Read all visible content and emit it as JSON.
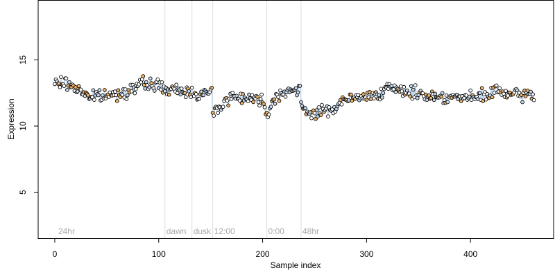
{
  "chart_data": {
    "type": "scatter",
    "xlabel": "Sample index",
    "ylabel": "Expression",
    "xlim": [
      -16,
      480
    ],
    "ylim": [
      1.5,
      19.5
    ],
    "x_ticks": [
      0,
      100,
      200,
      300,
      400
    ],
    "y_ticks": [
      5,
      10,
      15
    ],
    "grid": false,
    "phase_markers": [
      {
        "label": "24hr",
        "x": 2
      },
      {
        "label": "dawn",
        "x": 106
      },
      {
        "label": "dusk",
        "x": 132
      },
      {
        "label": "12:00",
        "x": 152
      },
      {
        "label": "0:00",
        "x": 204
      },
      {
        "label": "48hr",
        "x": 237
      }
    ],
    "series": [
      {
        "marker": "open-circle",
        "point_colors": {
          "light-blue": "#c3d9ef",
          "orange": "#f0b468",
          "white": "#ffffff"
        },
        "anchors": [
          {
            "x": 0,
            "y": 13.2
          },
          {
            "x": 8,
            "y": 13.3
          },
          {
            "x": 20,
            "y": 12.9
          },
          {
            "x": 35,
            "y": 12.2
          },
          {
            "x": 50,
            "y": 12.3
          },
          {
            "x": 60,
            "y": 12.4
          },
          {
            "x": 70,
            "y": 12.7
          },
          {
            "x": 85,
            "y": 13.2
          },
          {
            "x": 100,
            "y": 13.1
          },
          {
            "x": 110,
            "y": 12.6
          },
          {
            "x": 120,
            "y": 12.7
          },
          {
            "x": 135,
            "y": 12.5
          },
          {
            "x": 145,
            "y": 12.4
          },
          {
            "x": 151,
            "y": 12.6
          },
          {
            "x": 152,
            "y": 11.0
          },
          {
            "x": 160,
            "y": 11.6
          },
          {
            "x": 170,
            "y": 12.2
          },
          {
            "x": 185,
            "y": 12.2
          },
          {
            "x": 200,
            "y": 11.9
          },
          {
            "x": 205,
            "y": 11.0
          },
          {
            "x": 212,
            "y": 12.2
          },
          {
            "x": 222,
            "y": 12.7
          },
          {
            "x": 236,
            "y": 12.6
          },
          {
            "x": 238,
            "y": 11.2
          },
          {
            "x": 250,
            "y": 11.0
          },
          {
            "x": 265,
            "y": 11.2
          },
          {
            "x": 280,
            "y": 12.0
          },
          {
            "x": 300,
            "y": 12.2
          },
          {
            "x": 320,
            "y": 12.8
          },
          {
            "x": 340,
            "y": 12.6
          },
          {
            "x": 360,
            "y": 12.3
          },
          {
            "x": 380,
            "y": 12.2
          },
          {
            "x": 400,
            "y": 12.1
          },
          {
            "x": 415,
            "y": 12.3
          },
          {
            "x": 425,
            "y": 12.7
          },
          {
            "x": 440,
            "y": 12.3
          },
          {
            "x": 460,
            "y": 12.4
          }
        ],
        "n_points": 462
      }
    ]
  }
}
